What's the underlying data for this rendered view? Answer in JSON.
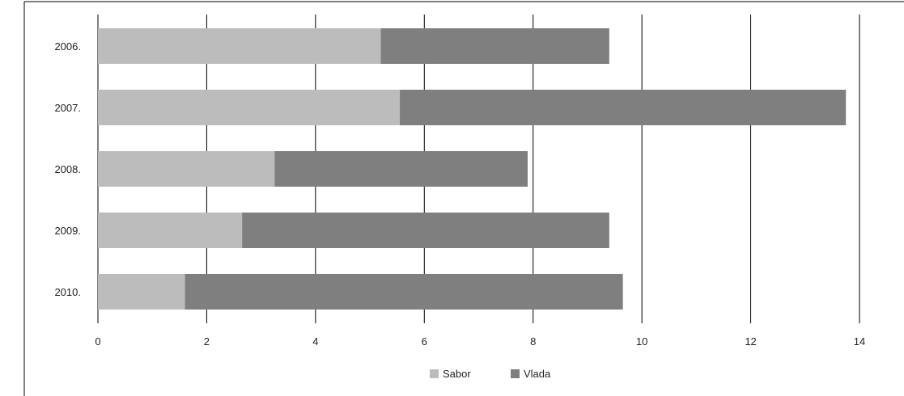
{
  "chart_data": {
    "type": "bar",
    "orientation": "horizontal",
    "stacked": true,
    "title": ") (",
    "categories": [
      "2006.",
      "2007.",
      "2008.",
      "2009.",
      "2010."
    ],
    "series": [
      {
        "name": "Sabor",
        "values": [
          5.2,
          5.55,
          3.25,
          2.65,
          1.6
        ],
        "color": "#bcbcbc"
      },
      {
        "name": "Vlada",
        "values": [
          4.2,
          8.2,
          4.65,
          6.75,
          8.05
        ],
        "color": "#7f7f7f"
      }
    ],
    "x_ticks": [
      "0",
      "2",
      "4",
      "6",
      "8",
      "10",
      "12",
      "14"
    ],
    "xlim": [
      0,
      14
    ],
    "grid": "vertical",
    "legend": "bottom-center"
  }
}
